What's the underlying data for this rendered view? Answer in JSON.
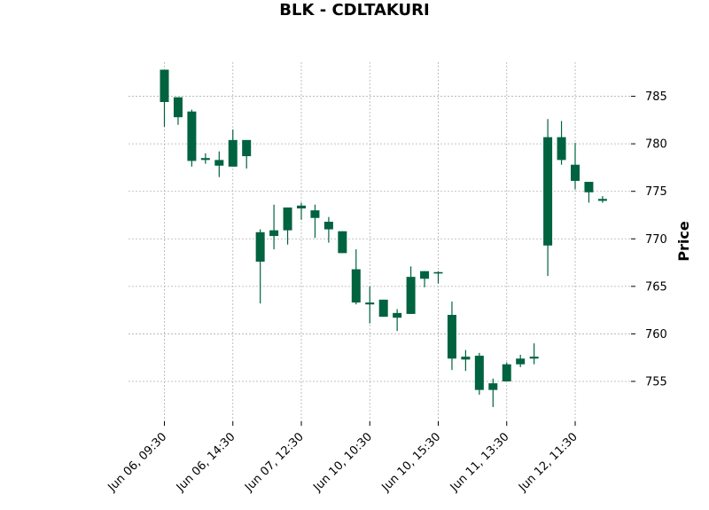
{
  "chart_data": {
    "type": "candlestick",
    "title": "BLK - CDLTAKURI",
    "ylabel": "Price",
    "ylim": [
      750.8,
      790.0
    ],
    "yticks": [
      755,
      760,
      765,
      770,
      775,
      780,
      785
    ],
    "xtick_labels": [
      "Jun 06, 09:30",
      "Jun 06, 14:30",
      "Jun 07, 12:30",
      "Jun 10, 10:30",
      "Jun 10, 15:30",
      "Jun 11, 13:30",
      "Jun 12, 11:30"
    ],
    "xtick_indices": [
      0,
      5,
      10,
      15,
      20,
      25,
      30
    ],
    "grid": true,
    "colors": {
      "up": "#006340",
      "down": "#a31b26",
      "grid": "#b0b0b0"
    },
    "candles": [
      {
        "o": 784.4,
        "h": 787.8,
        "l": 781.8,
        "c": 787.8
      },
      {
        "o": 782.8,
        "h": 784.9,
        "l": 782.0,
        "c": 784.9
      },
      {
        "o": 778.2,
        "h": 783.6,
        "l": 777.6,
        "c": 783.4
      },
      {
        "o": 778.3,
        "h": 779.0,
        "l": 777.9,
        "c": 778.5
      },
      {
        "o": 777.7,
        "h": 779.2,
        "l": 776.5,
        "c": 778.3
      },
      {
        "o": 777.6,
        "h": 781.5,
        "l": 777.6,
        "c": 780.4
      },
      {
        "o": 778.7,
        "h": 780.4,
        "l": 777.4,
        "c": 780.4
      },
      {
        "o": 767.6,
        "h": 771.0,
        "l": 763.2,
        "c": 770.7
      },
      {
        "o": 770.3,
        "h": 773.6,
        "l": 768.9,
        "c": 770.9
      },
      {
        "o": 770.9,
        "h": 773.3,
        "l": 769.4,
        "c": 773.3
      },
      {
        "o": 773.2,
        "h": 773.8,
        "l": 772.0,
        "c": 773.5
      },
      {
        "o": 772.2,
        "h": 773.6,
        "l": 770.1,
        "c": 773.0
      },
      {
        "o": 771.0,
        "h": 772.3,
        "l": 769.6,
        "c": 771.8
      },
      {
        "o": 768.5,
        "h": 770.8,
        "l": 768.5,
        "c": 770.8
      },
      {
        "o": 763.3,
        "h": 768.9,
        "l": 763.1,
        "c": 766.8
      },
      {
        "o": 763.1,
        "h": 765.0,
        "l": 761.1,
        "c": 763.3
      },
      {
        "o": 761.8,
        "h": 763.6,
        "l": 761.8,
        "c": 763.6
      },
      {
        "o": 761.7,
        "h": 762.6,
        "l": 760.3,
        "c": 762.2
      },
      {
        "o": 762.1,
        "h": 767.1,
        "l": 762.1,
        "c": 766.0
      },
      {
        "o": 765.8,
        "h": 766.6,
        "l": 764.9,
        "c": 766.6
      },
      {
        "o": 766.4,
        "h": 766.6,
        "l": 765.3,
        "c": 766.5
      },
      {
        "o": 757.4,
        "h": 763.4,
        "l": 756.2,
        "c": 762.0
      },
      {
        "o": 757.3,
        "h": 758.3,
        "l": 756.1,
        "c": 757.6
      },
      {
        "o": 754.1,
        "h": 758.0,
        "l": 753.6,
        "c": 757.7
      },
      {
        "o": 754.1,
        "h": 755.3,
        "l": 752.3,
        "c": 754.8
      },
      {
        "o": 755.0,
        "h": 757.0,
        "l": 755.0,
        "c": 756.8
      },
      {
        "o": 756.8,
        "h": 757.8,
        "l": 756.5,
        "c": 757.4
      },
      {
        "o": 757.4,
        "h": 759.0,
        "l": 756.8,
        "c": 757.6
      },
      {
        "o": 769.3,
        "h": 782.6,
        "l": 766.1,
        "c": 780.7
      },
      {
        "o": 778.3,
        "h": 782.4,
        "l": 777.8,
        "c": 780.7
      },
      {
        "o": 776.1,
        "h": 780.1,
        "l": 775.2,
        "c": 777.8
      },
      {
        "o": 774.9,
        "h": 776.0,
        "l": 773.8,
        "c": 776.0
      },
      {
        "o": 774.0,
        "h": 774.5,
        "l": 773.8,
        "c": 774.2
      }
    ]
  }
}
